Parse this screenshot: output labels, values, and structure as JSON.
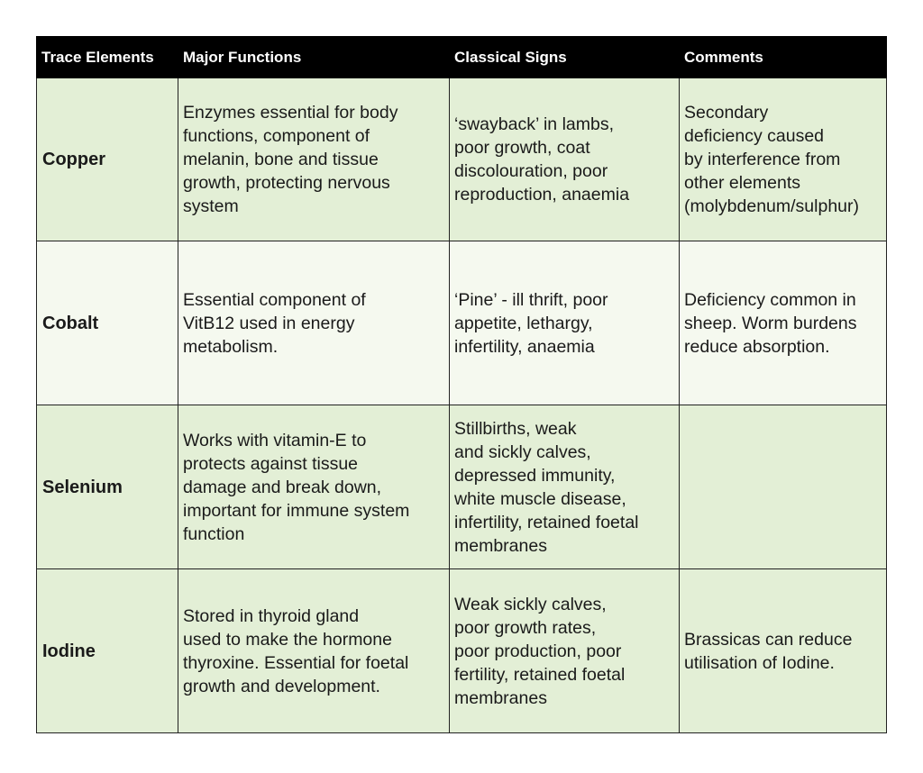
{
  "table": {
    "headers": [
      "Trace Elements",
      "Major Functions",
      "Classical Signs",
      "Comments"
    ],
    "rows": [
      {
        "element": "Copper",
        "functions": "Enzymes essential for body\nfunctions, component of\nmelanin, bone and tissue\ngrowth, protecting nervous\nsystem",
        "signs": "‘swayback’ in lambs,\npoor growth, coat\ndiscolouration, poor\nreproduction, anaemia",
        "comments": "Secondary\ndeficiency caused\nby interference from\nother elements\n(molybdenum/sulphur)"
      },
      {
        "element": "Cobalt",
        "functions": "Essential component of\nVitB12 used in energy\nmetabolism.",
        "signs": "‘Pine’ - ill thrift, poor\nappetite, lethargy,\ninfertility, anaemia",
        "comments": "Deficiency common in\nsheep. Worm burdens\nreduce absorption."
      },
      {
        "element": "Selenium",
        "functions": "Works with vitamin-E to\nprotects against tissue\ndamage and break down,\nimportant for immune system\nfunction",
        "signs": "Stillbirths, weak\nand sickly calves,\ndepressed immunity,\nwhite muscle disease,\ninfertility, retained foetal\nmembranes",
        "comments": ""
      },
      {
        "element": "Iodine",
        "functions": "Stored in thyroid gland\nused to make the hormone\nthyroxine. Essential for foetal\ngrowth and development.",
        "signs": "Weak sickly calves,\npoor growth rates,\npoor production, poor\nfertility, retained foetal\nmembranes",
        "comments": "Brassicas can reduce\nutilisation of Iodine."
      }
    ]
  },
  "colors": {
    "header_bg": "#000000",
    "row_green": "#e3efd6",
    "row_light": "#f5f9ef"
  }
}
